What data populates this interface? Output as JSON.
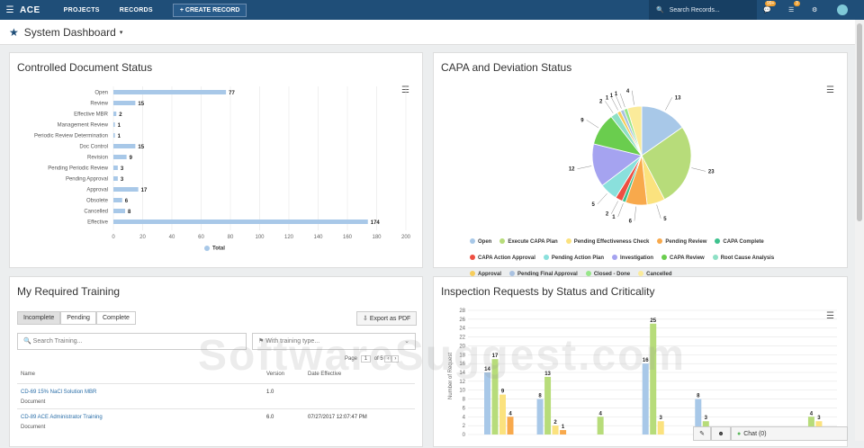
{
  "topbar": {
    "brand": "ACE",
    "nav": [
      "PROJECTS",
      "RECORDS"
    ],
    "create_label": "+ CREATE RECORD",
    "search_placeholder": "Search Records...",
    "notif_badge": "99+",
    "tasks_badge": "3"
  },
  "page": {
    "title": "System Dashboard"
  },
  "doc_status": {
    "title": "Controlled Document Status",
    "legend": "Total",
    "chart_data": {
      "type": "bar",
      "orientation": "horizontal",
      "categories": [
        "Open",
        "Review",
        "Effective MBR",
        "Management Review",
        "Periodic Review Determination",
        "Doc Control",
        "Revision",
        "Pending Periodic Review",
        "Pending Approval",
        "Approval",
        "Obsolete",
        "Cancelled",
        "Effective"
      ],
      "values": [
        77,
        15,
        2,
        1,
        1,
        15,
        9,
        3,
        3,
        17,
        6,
        8,
        174
      ],
      "xlim": [
        0,
        200
      ],
      "xticks": [
        0,
        20,
        40,
        60,
        80,
        100,
        120,
        140,
        160,
        180,
        200
      ],
      "color": "#a8c8e8",
      "grid": true
    }
  },
  "capa": {
    "title": "CAPA and Deviation Status",
    "chart_data": {
      "type": "pie",
      "slices": [
        {
          "label": "Open",
          "value": 13,
          "color": "#a8c8e8"
        },
        {
          "label": "Execute CAPA Plan",
          "value": 23,
          "color": "#b7dc7a"
        },
        {
          "label": "Pending Effectiveness Check",
          "value": 5,
          "color": "#fbe27e"
        },
        {
          "label": "Pending Review",
          "value": 6,
          "color": "#f8a94c"
        },
        {
          "label": "CAPA Complete",
          "value": 1,
          "color": "#3ec28e"
        },
        {
          "label": "CAPA Action Approval",
          "value": 2,
          "color": "#ee4f42"
        },
        {
          "label": "Pending Action Plan",
          "value": 5,
          "color": "#8ae0dc"
        },
        {
          "label": "Investigation",
          "value": 12,
          "color": "#a5a3f0"
        },
        {
          "label": "CAPA Review",
          "value": 9,
          "color": "#6acd4e"
        },
        {
          "label": "Root Cause Analysis",
          "value": 2,
          "color": "#8ee0c5"
        },
        {
          "label": "Approval",
          "value": 1,
          "color": "#f6cd5d"
        },
        {
          "label": "Pending Final Approval",
          "value": 1,
          "color": "#a9c1e0"
        },
        {
          "label": "Closed - Done",
          "value": 1,
          "color": "#97e68a"
        },
        {
          "label": "Cancelled",
          "value": 4,
          "color": "#fbeb9a"
        }
      ]
    }
  },
  "training": {
    "title": "My Required Training",
    "tabs": [
      "Incomplete",
      "Pending",
      "Complete"
    ],
    "export_label": "Export as PDF",
    "search_placeholder": "Search Training...",
    "type_placeholder": "With training type...",
    "pager": {
      "page_label": "Page",
      "page": "1",
      "of_label": "of 5"
    },
    "columns": [
      "Name",
      "Version",
      "Date Effective"
    ],
    "rows": [
      {
        "name": "CD-69 15% NaCl Solution MBR",
        "type": "Document",
        "version": "1.0",
        "date": ""
      },
      {
        "name": "CD-89 ACE Administrator Training",
        "type": "Document",
        "version": "6.0",
        "date": "07/27/2017 12:07:47 PM"
      }
    ]
  },
  "inspection": {
    "title": "Inspection Requests by Status and Criticality",
    "ylabel": "Number of Request",
    "chart_data": {
      "type": "bar",
      "ylim": [
        0,
        28
      ],
      "yticks": [
        0,
        2,
        4,
        6,
        8,
        10,
        12,
        14,
        16,
        18,
        20,
        22,
        24,
        26,
        28
      ],
      "series": [
        {
          "color": "#a8c8e8"
        },
        {
          "color": "#b7dc7a"
        },
        {
          "color": "#fbe27e"
        },
        {
          "color": "#f8a94c"
        }
      ],
      "groups": [
        {
          "values": [
            14,
            17,
            9,
            4
          ]
        },
        {
          "values": [
            8,
            13,
            2,
            1
          ]
        },
        {
          "values": [
            0,
            4,
            0,
            0
          ]
        },
        {
          "values": [
            16,
            25,
            3,
            0
          ]
        },
        {
          "values": [
            8,
            3,
            0,
            0
          ]
        },
        {
          "values": [
            0,
            0,
            0,
            0
          ]
        },
        {
          "values": [
            0,
            4,
            3,
            0
          ]
        }
      ]
    }
  },
  "footer": {
    "chat_label": "Chat (0)"
  },
  "watermark": "SoftwareSuggest.com"
}
